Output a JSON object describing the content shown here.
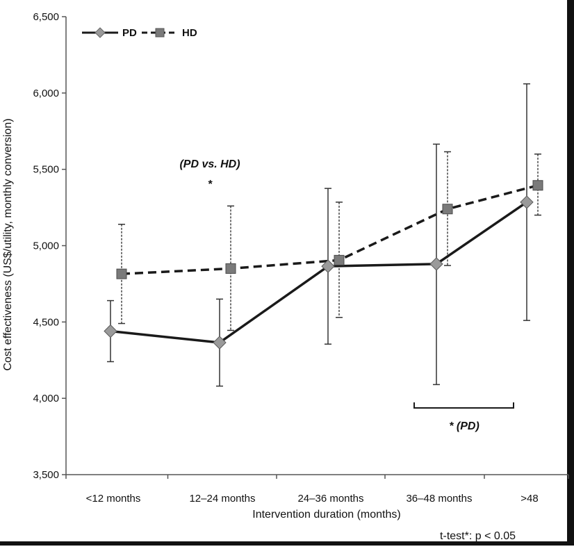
{
  "chart_data": {
    "type": "line",
    "title": "",
    "xlabel": "Intervention duration (months)",
    "ylabel": "Cost effectiveness (US$/utility, monthly conversion)",
    "ylim": [
      3500,
      6500
    ],
    "yticks": [
      3500,
      4000,
      4500,
      5000,
      5500,
      6000,
      6500
    ],
    "ytick_labels": [
      "3,500",
      "4,000",
      "4,500",
      "5,000",
      "5,500",
      "6,000",
      "6,500"
    ],
    "categories": [
      "<12 months",
      "12–24 months",
      "24–36 months",
      "36–48 months",
      ">48"
    ],
    "grid": false,
    "legend": "top-left",
    "series": [
      {
        "name": "PD",
        "values": [
          4440,
          4365,
          4865,
          4880,
          5285
        ],
        "error_low": [
          4240,
          4080,
          4355,
          4090,
          4510
        ],
        "error_high": [
          4640,
          4650,
          5375,
          5665,
          6060
        ],
        "line_style": "solid",
        "marker": "diamond",
        "line_color": "#1a1a1a",
        "marker_color": "#9a9a9a"
      },
      {
        "name": "HD",
        "values": [
          4815,
          4850,
          4905,
          5240,
          5395
        ],
        "error_low": [
          4490,
          4445,
          4530,
          4870,
          5200
        ],
        "error_high": [
          5140,
          5260,
          5285,
          5615,
          5600
        ],
        "line_style": "dashed",
        "marker": "square",
        "line_color": "#1a1a1a",
        "marker_color": "#7a7a7a"
      }
    ],
    "annotations": {
      "pd_vs_hd_label": "(PD vs. HD)",
      "pd_vs_hd_star": "*",
      "pd_bracket_label": "* (PD)",
      "footnote": "t-test*: p < 0.05"
    }
  }
}
